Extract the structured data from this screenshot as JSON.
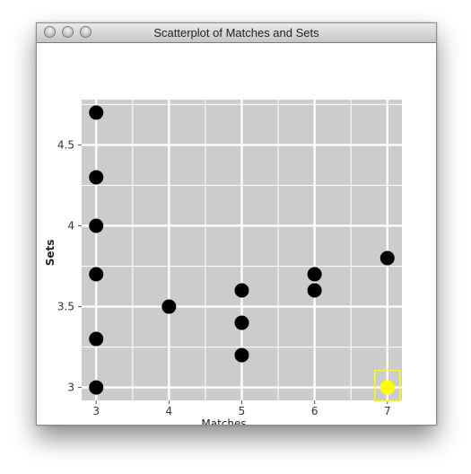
{
  "window": {
    "title": "Scatterplot of Matches and Sets"
  },
  "colors": {
    "plot_background": "#cccccc",
    "grid": "#ffffff",
    "point": "#000000",
    "selected_point": "#ffff00"
  },
  "chart_data": {
    "type": "scatter",
    "title": "",
    "xlabel": "Matches",
    "ylabel": "Sets",
    "xlim": [
      2.8,
      7.2
    ],
    "ylim": [
      2.92,
      4.78
    ],
    "xticks": [
      3,
      4,
      5,
      6,
      7
    ],
    "yticks": [
      3,
      3.5,
      4,
      4.5
    ],
    "xtick_labels": [
      "3",
      "4",
      "5",
      "6",
      "7"
    ],
    "ytick_labels": [
      "3",
      "3.5",
      "4",
      "4.5"
    ],
    "grid": true,
    "points": [
      {
        "x": 3,
        "y": 4.7
      },
      {
        "x": 3,
        "y": 4.3
      },
      {
        "x": 3,
        "y": 4.0
      },
      {
        "x": 3,
        "y": 3.7
      },
      {
        "x": 3,
        "y": 3.3
      },
      {
        "x": 3,
        "y": 3.0
      },
      {
        "x": 4,
        "y": 3.5
      },
      {
        "x": 5,
        "y": 3.6
      },
      {
        "x": 5,
        "y": 3.4
      },
      {
        "x": 5,
        "y": 3.2
      },
      {
        "x": 6,
        "y": 3.7
      },
      {
        "x": 6,
        "y": 3.6
      },
      {
        "x": 7,
        "y": 3.8
      },
      {
        "x": 7,
        "y": 3.0,
        "selected": true
      }
    ]
  }
}
